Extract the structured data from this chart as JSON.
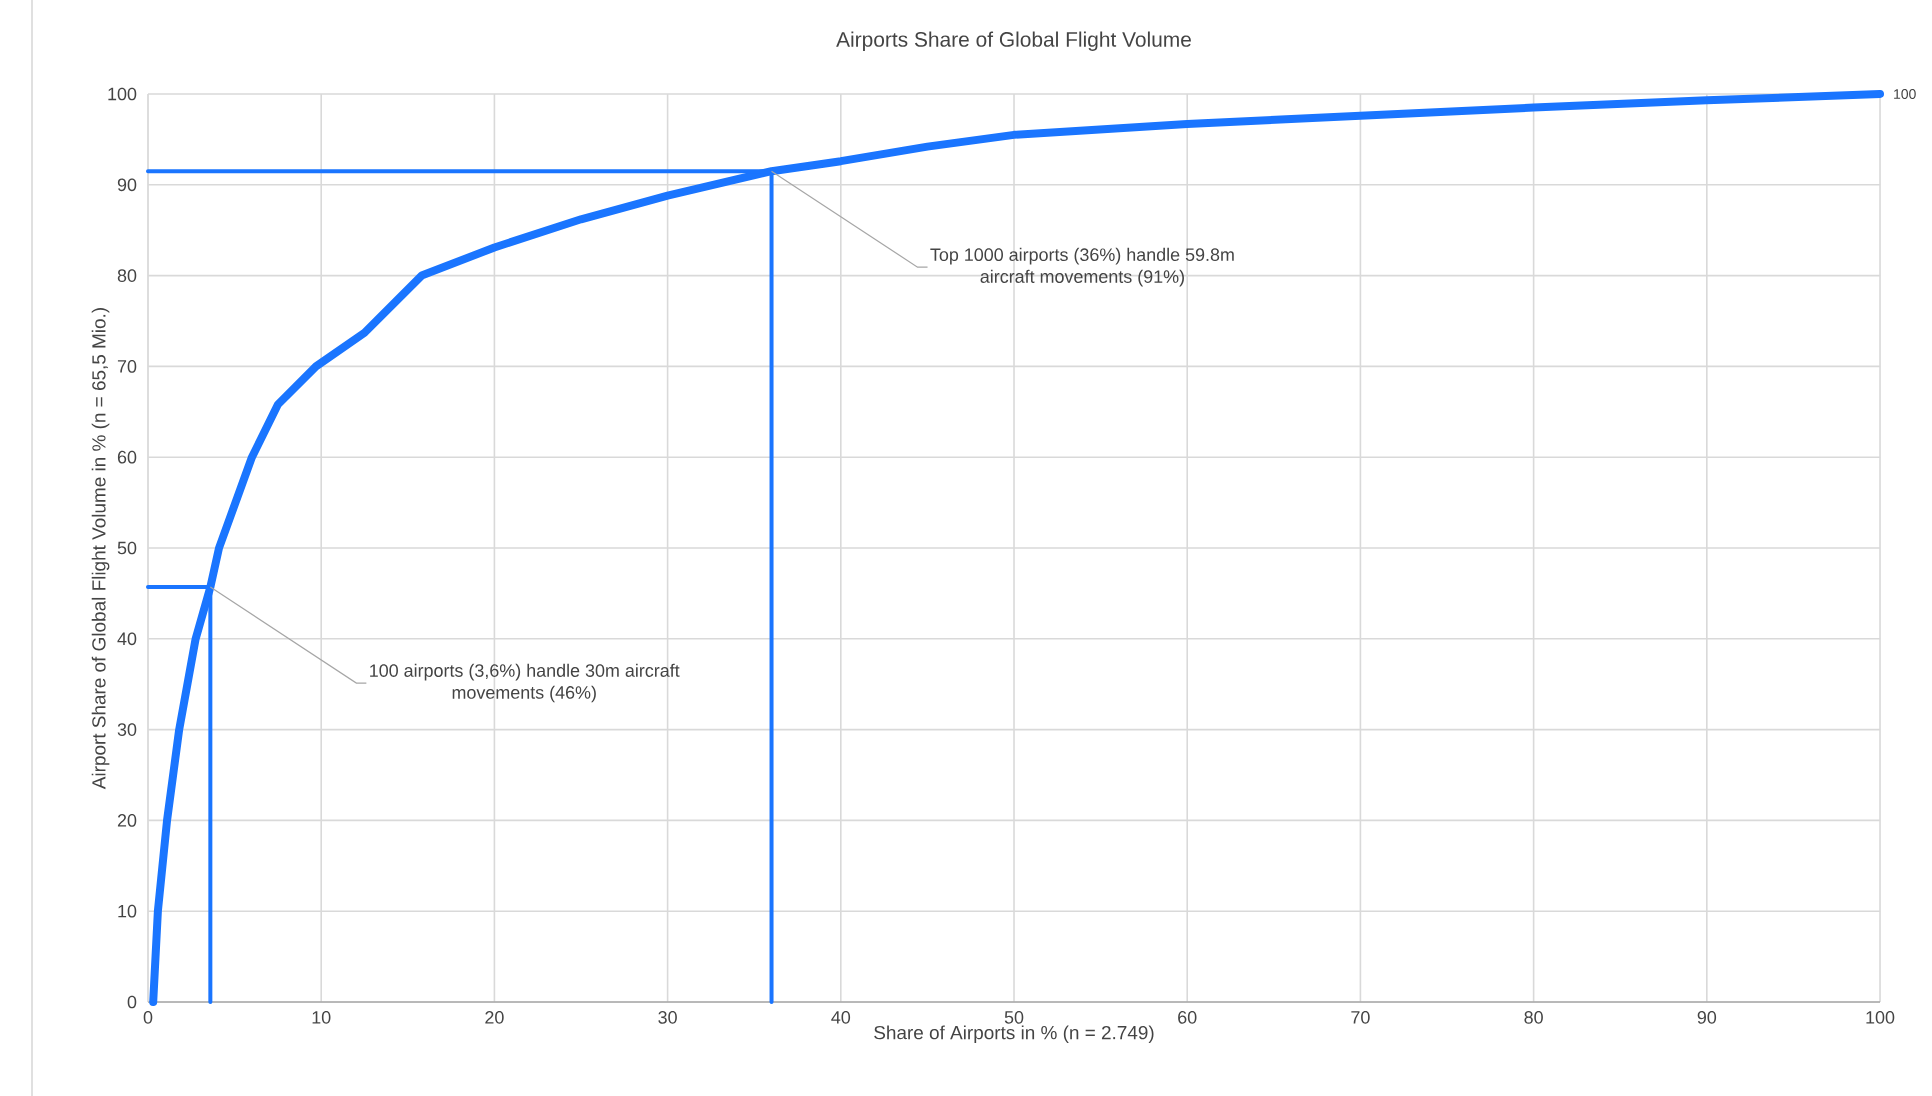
{
  "chart_data": {
    "type": "line",
    "title": "Airports Share of Global Flight Volume",
    "xlabel": "Share of Airports in % (n = 2.749)",
    "ylabel": "Airport Share of Global Flight Volume in % (n = 65,5 Mio.)",
    "xlim": [
      0,
      100
    ],
    "ylim": [
      0,
      100
    ],
    "xticks": [
      0,
      10,
      20,
      30,
      40,
      50,
      60,
      70,
      80,
      90,
      100
    ],
    "yticks": [
      0,
      10,
      20,
      30,
      40,
      50,
      60,
      70,
      80,
      90,
      100
    ],
    "grid": true,
    "series": [
      {
        "color": "#1a75ff",
        "x": [
          0.3,
          0.57,
          1.1,
          1.8,
          2.75,
          3.6,
          4.1,
          6.0,
          7.5,
          9.7,
          12.5,
          15.8,
          20,
          25,
          30,
          36,
          40,
          45,
          50,
          60,
          70,
          80,
          90,
          100
        ],
        "values": [
          0,
          10,
          20,
          30,
          40,
          45.7,
          50,
          60,
          65.8,
          70,
          73.7,
          80,
          83.1,
          86.2,
          88.8,
          91.5,
          92.6,
          94.2,
          95.5,
          96.7,
          97.6,
          98.5,
          99.3,
          100
        ],
        "value_labels": [
          null,
          null,
          null,
          null,
          null,
          null,
          null,
          null,
          null,
          null,
          null,
          null,
          null,
          null,
          null,
          null,
          null,
          null,
          null,
          null,
          null,
          null,
          null,
          "100"
        ]
      },
      {
        "color": "#1a75ff",
        "x": [
          0,
          3.6,
          3.6
        ],
        "values": [
          45.7,
          45.7,
          0
        ]
      },
      {
        "color": "#1a75ff",
        "x": [
          0,
          36,
          36
        ],
        "values": [
          91.5,
          91.5,
          0
        ]
      }
    ],
    "annotations": [
      {
        "text": "100 airports (3,6%) handle 30m aircraft movements (46%)",
        "x": 3.6,
        "y": 45.7
      },
      {
        "text": "Top 1000 airports (36%) handle 59.8m aircraft movements (91%)",
        "x": 36,
        "y": 91.5
      }
    ]
  }
}
